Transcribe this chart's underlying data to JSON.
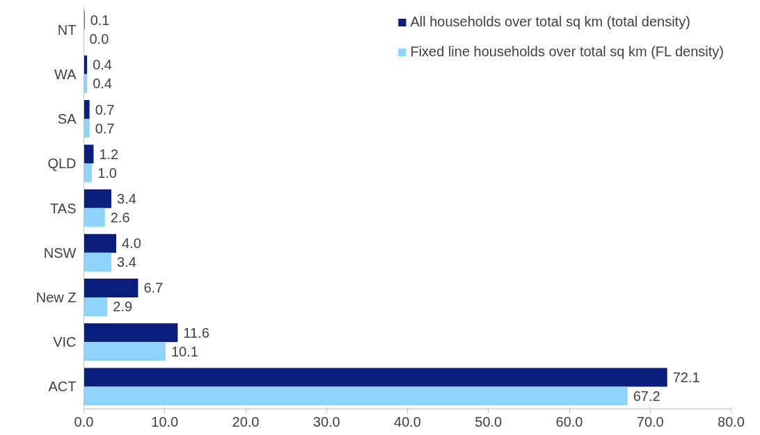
{
  "chart_data": {
    "type": "bar",
    "orientation": "horizontal",
    "categories": [
      "NT",
      "WA",
      "SA",
      "QLD",
      "TAS",
      "NSW",
      "New Z",
      "VIC",
      "ACT"
    ],
    "series": [
      {
        "name": "All households over total sq km (total density)",
        "color": "#0a1f7c",
        "values": [
          0.1,
          0.4,
          0.7,
          1.2,
          3.4,
          4.0,
          6.7,
          11.6,
          72.1
        ],
        "value_labels": [
          "0.1",
          "0.4",
          "0.7",
          "1.2",
          "3.4",
          "4.0",
          "6.7",
          "11.6",
          "72.1"
        ]
      },
      {
        "name": "Fixed line households over total sq km (FL density)",
        "color": "#8fd4fc",
        "values": [
          0.0,
          0.4,
          0.7,
          1.0,
          2.6,
          3.4,
          2.9,
          10.1,
          67.2
        ],
        "value_labels": [
          "0.0",
          "0.4",
          "0.7",
          "1.0",
          "2.6",
          "3.4",
          "2.9",
          "10.1",
          "67.2"
        ]
      }
    ],
    "xlim": [
      0,
      80
    ],
    "xticks": [
      {
        "value": 0,
        "label": "0.0"
      },
      {
        "value": 10,
        "label": "10.0"
      },
      {
        "value": 20,
        "label": "20.0"
      },
      {
        "value": 30,
        "label": "30.0"
      },
      {
        "value": 40,
        "label": "40.0"
      },
      {
        "value": 50,
        "label": "50.0"
      },
      {
        "value": 60,
        "label": "60.0"
      },
      {
        "value": 70,
        "label": "70.0"
      },
      {
        "value": 80,
        "label": "80.0"
      }
    ],
    "legend": "top right",
    "grid": false
  }
}
